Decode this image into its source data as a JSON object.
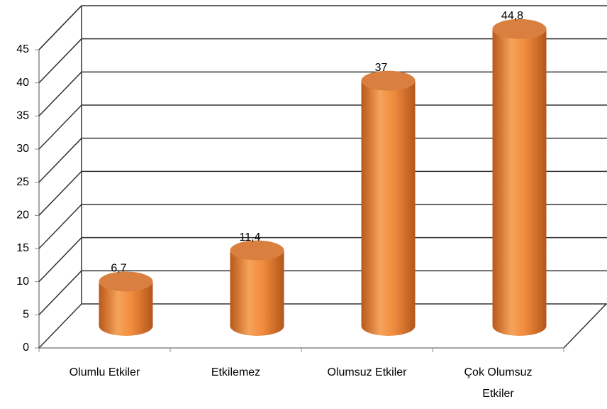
{
  "chart_data": {
    "type": "cylinder",
    "categories": [
      "Olumlu Etkiler",
      "Etkilemez",
      "Olumsuz Etkiler",
      "Çok Olumsuz Etkiler"
    ],
    "values": [
      6.7,
      11.4,
      37,
      44.8
    ],
    "value_labels": [
      "6,7",
      "11,4",
      "37",
      "44,8"
    ],
    "color": "#e8853a",
    "ylim": [
      0,
      45
    ],
    "yticks": [
      0,
      5,
      10,
      15,
      20,
      25,
      30,
      35,
      40,
      45
    ],
    "grid": true
  }
}
